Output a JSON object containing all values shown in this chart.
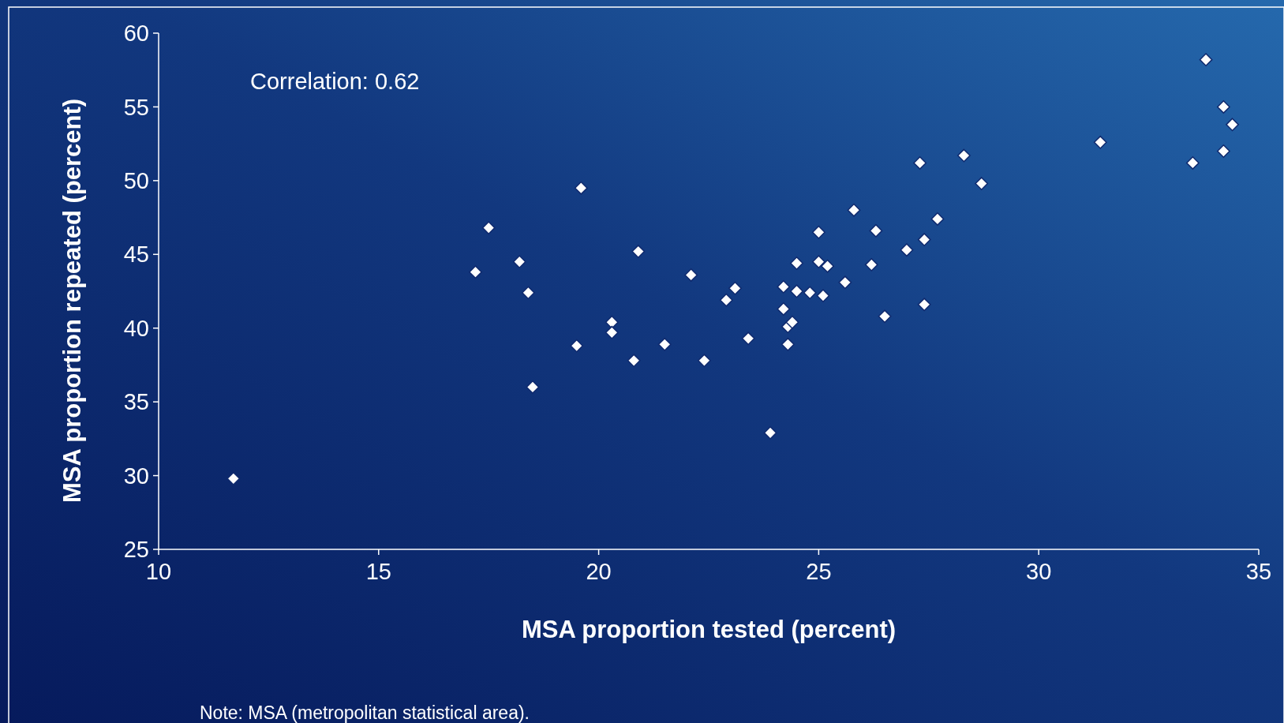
{
  "chart_data": {
    "type": "scatter",
    "xlabel": "MSA proportion tested (percent)",
    "ylabel": "MSA proportion repeated (percent)",
    "annotations": [
      "Correlation: 0.62",
      "Note: MSA (metropolitan statistical area)."
    ],
    "xlim": [
      10,
      35
    ],
    "xticks": [
      10,
      15,
      20,
      25,
      30,
      35
    ],
    "ylim": [
      25,
      60
    ],
    "yticks": [
      25,
      30,
      35,
      40,
      45,
      50,
      55,
      60
    ],
    "grid": false,
    "marker": "diamond",
    "series": [
      {
        "color": "#ffffff",
        "x": [
          11.7,
          17.2,
          17.5,
          18.2,
          18.4,
          18.5,
          19.5,
          19.6,
          20.3,
          20.3,
          20.8,
          20.9,
          21.5,
          22.1,
          22.4,
          22.9,
          23.1,
          23.4,
          23.9,
          24.2,
          24.2,
          24.3,
          24.4,
          24.3,
          24.5,
          24.5,
          24.8,
          25.0,
          25.0,
          25.2,
          25.1,
          25.6,
          25.8,
          26.2,
          26.3,
          26.5,
          27.0,
          27.3,
          27.4,
          27.4,
          27.7,
          28.3,
          28.7,
          31.4,
          33.5,
          33.8,
          34.2,
          34.2,
          34.4
        ],
        "values": [
          29.8,
          43.8,
          46.8,
          44.5,
          42.4,
          36.0,
          38.8,
          49.5,
          40.4,
          39.7,
          37.8,
          45.2,
          38.9,
          43.6,
          37.8,
          41.9,
          42.7,
          39.3,
          32.9,
          42.8,
          41.3,
          40.1,
          40.4,
          38.9,
          44.4,
          42.5,
          42.4,
          46.5,
          44.5,
          44.2,
          42.2,
          43.1,
          48.0,
          44.3,
          46.6,
          40.8,
          45.3,
          51.2,
          46.0,
          41.6,
          47.4,
          51.7,
          49.8,
          52.6,
          51.2,
          58.2,
          55.0,
          52.0,
          53.8
        ]
      }
    ]
  }
}
